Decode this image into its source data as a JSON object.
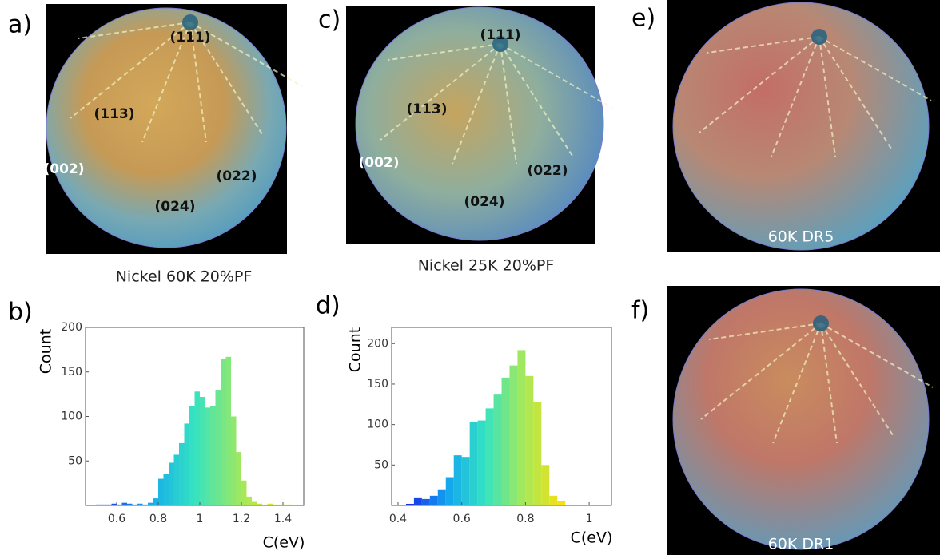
{
  "panels": [
    {
      "label": "a)",
      "caption": "Nickel 60K 20%PF",
      "annotations": [
        "(111)",
        "(113)",
        "(002)",
        "(022)",
        "(024)"
      ]
    },
    {
      "label": "c)",
      "caption": "Nickel 25K 20%PF",
      "annotations": [
        "(111)",
        "(113)",
        "(002)",
        "(022)",
        "(024)"
      ]
    },
    {
      "label": "e)",
      "caption": "60K DR5"
    },
    {
      "label": "f)",
      "caption": "60K DR1"
    }
  ],
  "chart_data": [
    {
      "type": "histogram",
      "panel_label": "b)",
      "xlabel": "C(eV)",
      "ylabel": "Count",
      "bins": [
        0.5,
        0.525,
        0.55,
        0.575,
        0.6,
        0.625,
        0.65,
        0.675,
        0.7,
        0.725,
        0.75,
        0.775,
        0.8,
        0.825,
        0.85,
        0.875,
        0.9,
        0.925,
        0.95,
        0.975,
        1.0,
        1.025,
        1.05,
        1.075,
        1.1,
        1.125,
        1.15,
        1.175,
        1.2,
        1.225,
        1.25,
        1.275,
        1.3,
        1.325,
        1.35,
        1.375,
        1.4,
        1.425,
        1.45
      ],
      "values": [
        1,
        1,
        1,
        2,
        1,
        3,
        2,
        1,
        2,
        1,
        3,
        8,
        30,
        35,
        48,
        57,
        70,
        92,
        112,
        128,
        122,
        110,
        112,
        130,
        165,
        167,
        100,
        60,
        28,
        10,
        4,
        2,
        1,
        2,
        1,
        1,
        1,
        1
      ],
      "colormap": [
        "#1a2ee8",
        "#12a6ef",
        "#35e3c2",
        "#a6e85a",
        "#f4e013"
      ],
      "xlim": [
        0.45,
        1.5
      ],
      "ylim": [
        0,
        200
      ],
      "xticks": [
        0.6,
        0.8,
        1,
        1.2,
        1.4
      ],
      "yticks": [
        50,
        100,
        150,
        200
      ]
    },
    {
      "type": "histogram",
      "panel_label": "d)",
      "xlabel": "C(eV)",
      "ylabel": "Count",
      "bins": [
        0.425,
        0.45,
        0.475,
        0.5,
        0.525,
        0.55,
        0.575,
        0.6,
        0.625,
        0.65,
        0.675,
        0.7,
        0.725,
        0.75,
        0.775,
        0.8,
        0.825,
        0.85,
        0.875,
        0.9,
        0.925
      ],
      "values": [
        2,
        10,
        8,
        12,
        20,
        35,
        62,
        60,
        103,
        105,
        120,
        137,
        158,
        173,
        192,
        160,
        128,
        50,
        12,
        5
      ],
      "colormap": [
        "#1a2ee8",
        "#12a6ef",
        "#35e3c2",
        "#a6e85a",
        "#f4e013"
      ],
      "xlim": [
        0.38,
        1.07
      ],
      "ylim": [
        0,
        220
      ],
      "xticks": [
        0.4,
        0.6,
        0.8,
        1
      ],
      "yticks": [
        50,
        100,
        150,
        200
      ]
    }
  ]
}
